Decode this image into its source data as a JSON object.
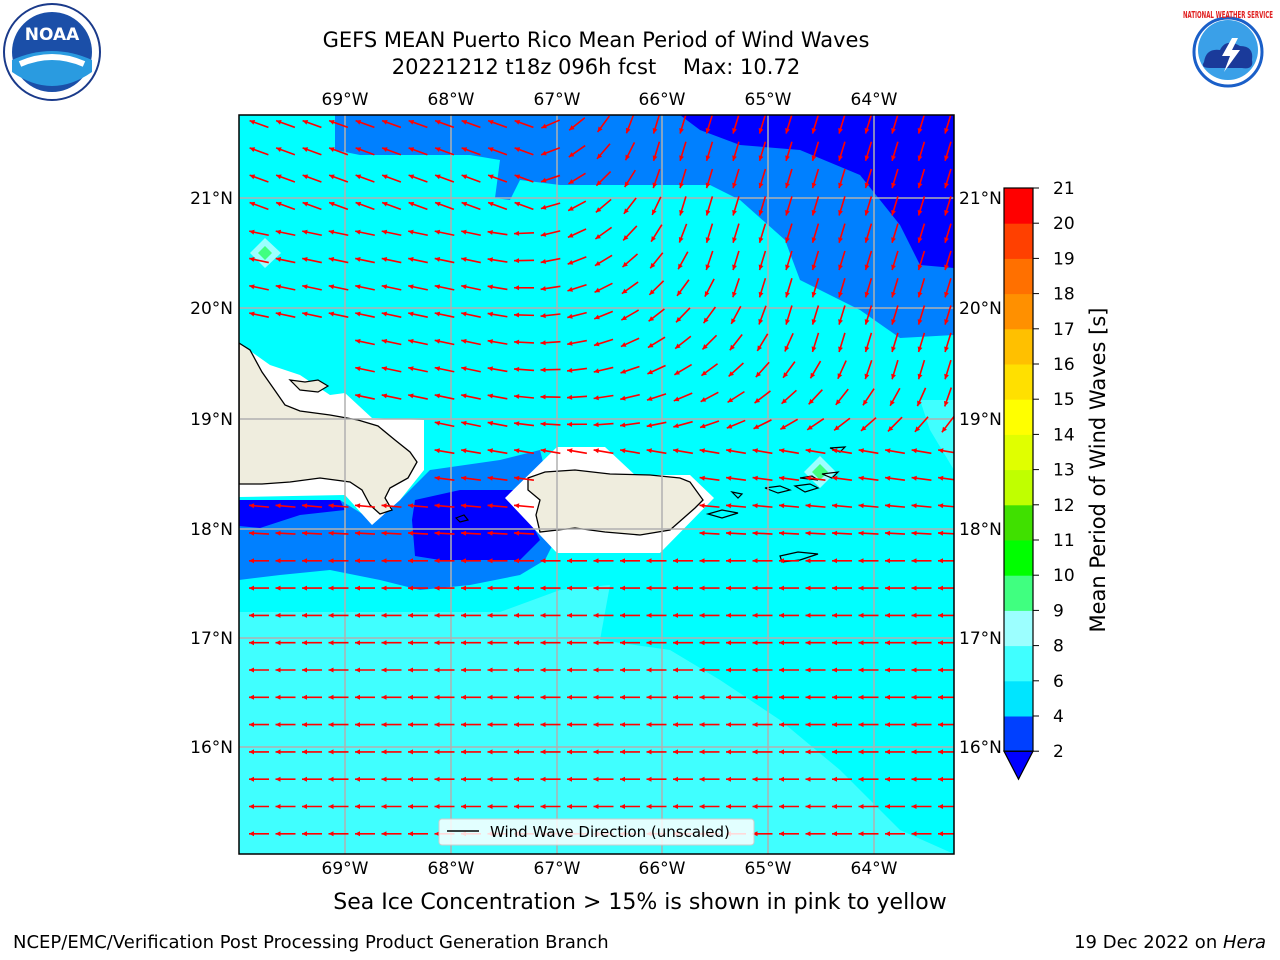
{
  "title": {
    "line1": "GEFS MEAN Puerto Rico Mean Period of Wind Waves",
    "line2": "20221212 t18z 096h fcst    Max: 10.72"
  },
  "logos": {
    "left": {
      "icon": "noaa-logo",
      "text": "NOAA"
    },
    "right": {
      "icon": "nws-logo",
      "text": "NATIONAL WEATHER SERVICE"
    }
  },
  "map": {
    "lon_labels": [
      "69°W",
      "68°W",
      "67°W",
      "66°W",
      "65°W",
      "64°W"
    ],
    "lat_labels": [
      "21°N",
      "20°N",
      "19°N",
      "18°N",
      "17°N",
      "16°N"
    ],
    "legend": "Wind Wave Direction (unscaled)"
  },
  "colorbar": {
    "title": "Mean Period of Wind Waves [s]",
    "ticks": [
      "2",
      "4",
      "6",
      "8",
      "9",
      "10",
      "11",
      "12",
      "13",
      "14",
      "15",
      "16",
      "17",
      "18",
      "19",
      "20",
      "21"
    ],
    "colors": [
      "#0040ff",
      "#00e5ff",
      "#40ffff",
      "#9cffff",
      "#40ff80",
      "#00ff00",
      "#40e000",
      "#c0ff00",
      "#e0ff00",
      "#ffff00",
      "#ffe000",
      "#ffc000",
      "#ff9000",
      "#ff7000",
      "#ff4000",
      "#ff0000"
    ],
    "extend_color": "#0000ff"
  },
  "palette": {
    "deep_blue": "#0000ff",
    "blue": "#0080ff",
    "cyan": "#00ffff",
    "light_cyan": "#40ffff",
    "land": "#efedde",
    "arrow": "#ff0000"
  },
  "subtitle": "Sea Ice Concentration > 15% is shown in pink to yellow",
  "footer": {
    "left": "NCEP/EMC/Verification Post Processing Product Generation Branch",
    "right_prefix": "19 Dec 2022 on ",
    "right_host": "Hera"
  }
}
